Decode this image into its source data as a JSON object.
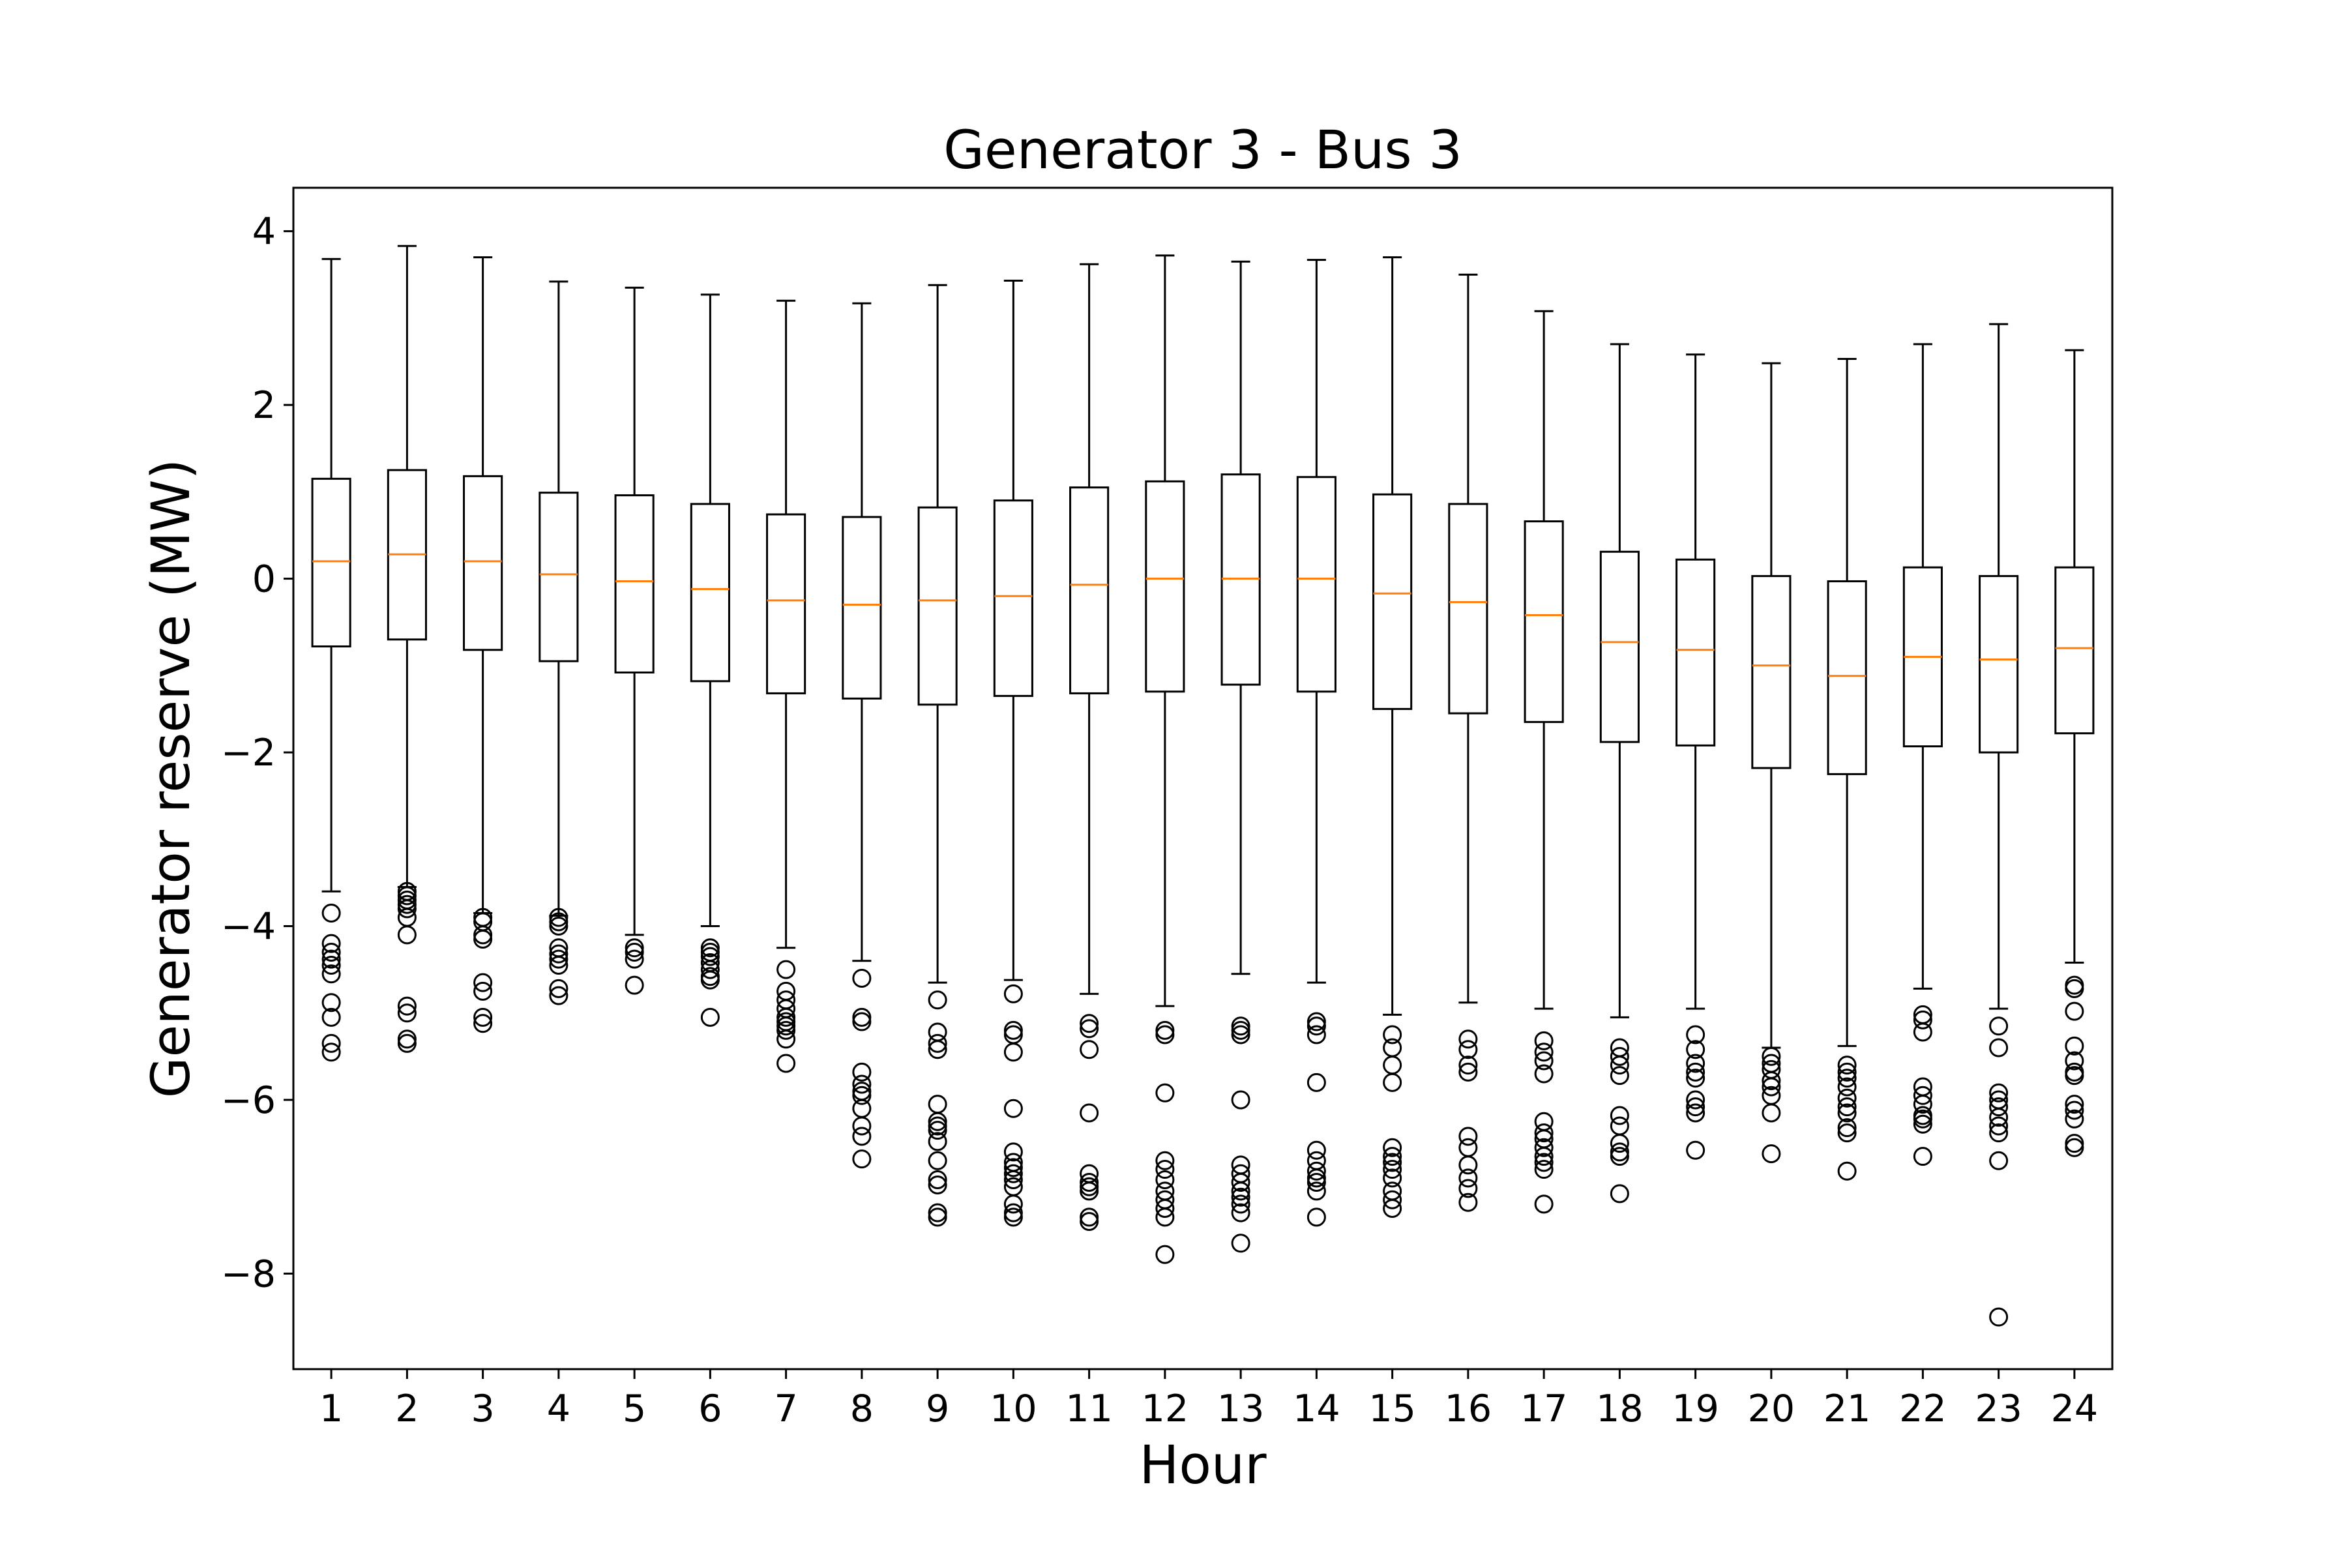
{
  "chart_data": {
    "type": "box",
    "title": "Generator 3 - Bus 3",
    "xlabel": "Hour",
    "ylabel": "Generator reserve (MW)",
    "ylim": [
      -9.1,
      4.5
    ],
    "yticks": [
      4,
      2,
      0,
      -2,
      -4,
      -6,
      -8
    ],
    "ytick_labels": [
      "4",
      "2",
      "0",
      "−2",
      "−4",
      "−6",
      "−8"
    ],
    "categories": [
      "1",
      "2",
      "3",
      "4",
      "5",
      "6",
      "7",
      "8",
      "9",
      "10",
      "11",
      "12",
      "13",
      "14",
      "15",
      "16",
      "17",
      "18",
      "19",
      "20",
      "21",
      "22",
      "23",
      "24"
    ],
    "colors": {
      "box": "#000000",
      "median": "#ff7f0e",
      "flier": "#000000"
    },
    "boxes": [
      {
        "whislo": -3.6,
        "q1": -0.78,
        "med": 0.2,
        "q3": 1.15,
        "whishi": 3.68,
        "fliers": [
          -3.85,
          -4.2,
          -4.3,
          -4.38,
          -4.45,
          -4.55,
          -4.88,
          -5.05,
          -5.35,
          -5.45
        ]
      },
      {
        "whislo": -3.55,
        "q1": -0.7,
        "med": 0.28,
        "q3": 1.25,
        "whishi": 3.83,
        "fliers": [
          -3.6,
          -3.65,
          -3.7,
          -3.75,
          -3.8,
          -3.9,
          -4.1,
          -4.92,
          -5.0,
          -5.3,
          -5.35
        ]
      },
      {
        "whislo": -3.85,
        "q1": -0.82,
        "med": 0.2,
        "q3": 1.18,
        "whishi": 3.7,
        "fliers": [
          -3.9,
          -3.95,
          -4.1,
          -4.15,
          -4.65,
          -4.75,
          -5.05,
          -5.12
        ]
      },
      {
        "whislo": -3.88,
        "q1": -0.95,
        "med": 0.05,
        "q3": 0.99,
        "whishi": 3.42,
        "fliers": [
          -3.9,
          -3.95,
          -4.0,
          -4.25,
          -4.32,
          -4.38,
          -4.45,
          -4.72,
          -4.8
        ]
      },
      {
        "whislo": -4.1,
        "q1": -1.08,
        "med": -0.03,
        "q3": 0.96,
        "whishi": 3.35,
        "fliers": [
          -4.25,
          -4.3,
          -4.38,
          -4.68
        ]
      },
      {
        "whislo": -4.0,
        "q1": -1.18,
        "med": -0.12,
        "q3": 0.86,
        "whishi": 3.27,
        "fliers": [
          -4.25,
          -4.3,
          -4.35,
          -4.42,
          -4.5,
          -4.58,
          -4.62,
          -5.05
        ]
      },
      {
        "whislo": -4.25,
        "q1": -1.32,
        "med": -0.25,
        "q3": 0.74,
        "whishi": 3.2,
        "fliers": [
          -4.5,
          -4.75,
          -4.85,
          -4.95,
          -5.05,
          -5.1,
          -5.15,
          -5.2,
          -5.3,
          -5.58
        ]
      },
      {
        "whislo": -4.4,
        "q1": -1.38,
        "med": -0.3,
        "q3": 0.71,
        "whishi": 3.17,
        "fliers": [
          -4.6,
          -5.05,
          -5.1,
          -5.68,
          -5.82,
          -5.9,
          -5.95,
          -6.1,
          -6.3,
          -6.42,
          -6.68
        ]
      },
      {
        "whislo": -4.65,
        "q1": -1.45,
        "med": -0.25,
        "q3": 0.82,
        "whishi": 3.38,
        "fliers": [
          -4.85,
          -5.22,
          -5.35,
          -5.42,
          -6.05,
          -6.25,
          -6.3,
          -6.35,
          -6.48,
          -6.7,
          -6.92,
          -6.98,
          -7.3,
          -7.35
        ]
      },
      {
        "whislo": -4.62,
        "q1": -1.35,
        "med": -0.2,
        "q3": 0.9,
        "whishi": 3.43,
        "fliers": [
          -4.78,
          -5.2,
          -5.25,
          -5.45,
          -6.1,
          -6.6,
          -6.72,
          -6.78,
          -6.85,
          -6.92,
          -7.0,
          -7.2,
          -7.3,
          -7.35
        ]
      },
      {
        "whislo": -4.78,
        "q1": -1.32,
        "med": -0.07,
        "q3": 1.05,
        "whishi": 3.62,
        "fliers": [
          -5.12,
          -5.18,
          -5.42,
          -6.15,
          -6.85,
          -6.95,
          -7.0,
          -7.05,
          -7.35,
          -7.4
        ]
      },
      {
        "whislo": -4.92,
        "q1": -1.3,
        "med": 0.0,
        "q3": 1.12,
        "whishi": 3.72,
        "fliers": [
          -5.2,
          -5.25,
          -5.92,
          -6.7,
          -6.8,
          -6.92,
          -7.05,
          -7.15,
          -7.25,
          -7.35,
          -7.78
        ]
      },
      {
        "whislo": -4.55,
        "q1": -1.22,
        "med": 0.0,
        "q3": 1.2,
        "whishi": 3.65,
        "fliers": [
          -5.15,
          -5.2,
          -5.25,
          -6.0,
          -6.75,
          -6.85,
          -6.95,
          -7.05,
          -7.12,
          -7.2,
          -7.3,
          -7.65
        ]
      },
      {
        "whislo": -4.65,
        "q1": -1.3,
        "med": 0.0,
        "q3": 1.17,
        "whishi": 3.67,
        "fliers": [
          -5.1,
          -5.15,
          -5.25,
          -5.8,
          -6.58,
          -6.7,
          -6.82,
          -6.9,
          -6.95,
          -7.05,
          -7.35
        ]
      },
      {
        "whislo": -5.02,
        "q1": -1.5,
        "med": -0.17,
        "q3": 0.97,
        "whishi": 3.7,
        "fliers": [
          -5.25,
          -5.4,
          -5.6,
          -5.8,
          -6.55,
          -6.65,
          -6.72,
          -6.8,
          -6.9,
          -7.05,
          -7.15,
          -7.25
        ]
      },
      {
        "whislo": -4.88,
        "q1": -1.55,
        "med": -0.27,
        "q3": 0.86,
        "whishi": 3.5,
        "fliers": [
          -5.3,
          -5.42,
          -5.6,
          -5.68,
          -6.42,
          -6.55,
          -6.75,
          -6.9,
          -7.02,
          -7.18
        ]
      },
      {
        "whislo": -4.95,
        "q1": -1.65,
        "med": -0.42,
        "q3": 0.66,
        "whishi": 3.08,
        "fliers": [
          -5.32,
          -5.45,
          -5.55,
          -5.7,
          -6.25,
          -6.38,
          -6.45,
          -6.55,
          -6.65,
          -6.72,
          -6.8,
          -7.2
        ]
      },
      {
        "whislo": -5.05,
        "q1": -1.88,
        "med": -0.73,
        "q3": 0.31,
        "whishi": 2.7,
        "fliers": [
          -5.4,
          -5.5,
          -5.6,
          -5.72,
          -6.18,
          -6.3,
          -6.5,
          -6.6,
          -6.65,
          -7.08
        ]
      },
      {
        "whislo": -4.95,
        "q1": -1.92,
        "med": -0.82,
        "q3": 0.22,
        "whishi": 2.58,
        "fliers": [
          -5.25,
          -5.42,
          -5.58,
          -5.68,
          -5.75,
          -6.0,
          -6.08,
          -6.15,
          -6.58
        ]
      },
      {
        "whislo": -5.4,
        "q1": -2.18,
        "med": -1.0,
        "q3": 0.03,
        "whishi": 2.48,
        "fliers": [
          -5.5,
          -5.58,
          -5.65,
          -5.78,
          -5.85,
          -5.95,
          -6.15,
          -6.62
        ]
      },
      {
        "whislo": -5.38,
        "q1": -2.25,
        "med": -1.12,
        "q3": -0.03,
        "whishi": 2.53,
        "fliers": [
          -5.6,
          -5.68,
          -5.75,
          -5.85,
          -5.98,
          -6.08,
          -6.15,
          -6.32,
          -6.38,
          -6.82
        ]
      },
      {
        "whislo": -4.72,
        "q1": -1.93,
        "med": -0.9,
        "q3": 0.13,
        "whishi": 2.7,
        "fliers": [
          -5.02,
          -5.08,
          -5.22,
          -5.85,
          -5.95,
          -6.05,
          -6.18,
          -6.22,
          -6.28,
          -6.65
        ]
      },
      {
        "whislo": -4.95,
        "q1": -2.0,
        "med": -0.93,
        "q3": 0.03,
        "whishi": 2.93,
        "fliers": [
          -5.15,
          -5.4,
          -5.92,
          -6.0,
          -6.08,
          -6.2,
          -6.3,
          -6.38,
          -6.7,
          -8.5
        ]
      },
      {
        "whislo": -4.42,
        "q1": -1.78,
        "med": -0.8,
        "q3": 0.13,
        "whishi": 2.63,
        "fliers": [
          -4.68,
          -4.72,
          -4.98,
          -5.38,
          -5.55,
          -5.68,
          -5.72,
          -6.05,
          -6.12,
          -6.22,
          -6.5,
          -6.55
        ]
      }
    ]
  }
}
